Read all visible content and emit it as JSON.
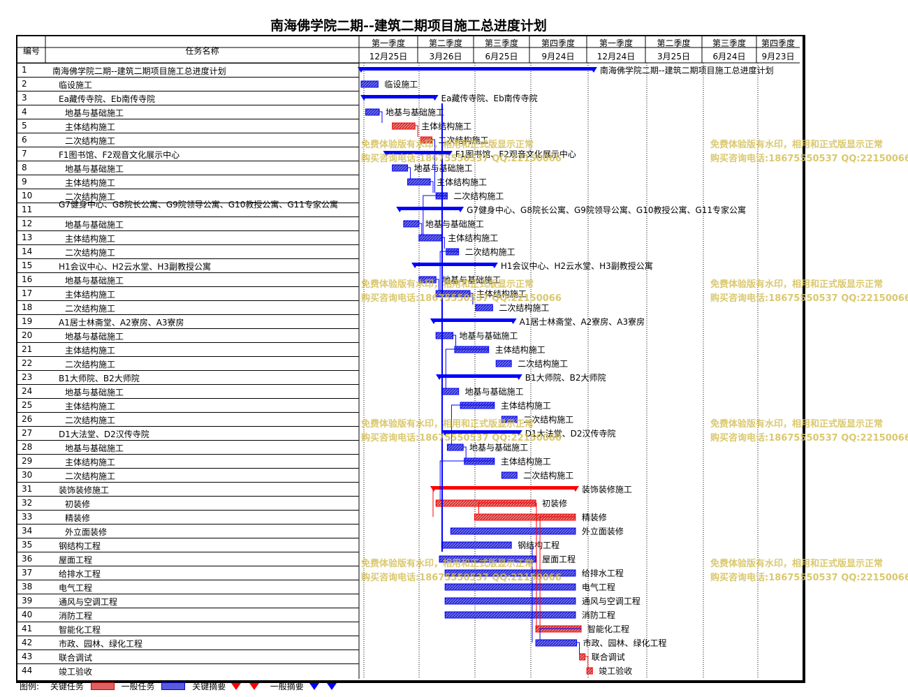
{
  "title": "南海佛学院二期--建筑二期项目施工总进度计划",
  "header": {
    "id_label": "编号",
    "name_label": "任务名称",
    "quarters": [
      "第一季度",
      "第二季度",
      "第三季度",
      "第四季度",
      "第一季度",
      "第二季度",
      "第三季度",
      "第四季度"
    ],
    "dates": [
      "12月25日",
      "3月26日",
      "6月25日",
      "9月24日",
      "12月24日",
      "3月25日",
      "6月24日",
      "9月23日"
    ]
  },
  "rows": [
    {
      "id": "1",
      "name": "南海佛学院二期--建筑二期项目施工总进度计划",
      "indent": 0
    },
    {
      "id": "2",
      "name": "临设施工",
      "indent": 1
    },
    {
      "id": "3",
      "name": "Ea藏传寺院、Eb南传寺院",
      "indent": 1
    },
    {
      "id": "4",
      "name": "地基与基础施工",
      "indent": 2
    },
    {
      "id": "5",
      "name": "主体结构施工",
      "indent": 2
    },
    {
      "id": "6",
      "name": "二次结构施工",
      "indent": 2
    },
    {
      "id": "7",
      "name": "F1图书馆、F2观音文化展示中心",
      "indent": 1
    },
    {
      "id": "8",
      "name": "地基与基础施工",
      "indent": 2
    },
    {
      "id": "9",
      "name": "主体结构施工",
      "indent": 2
    },
    {
      "id": "10",
      "name": "二次结构施工",
      "indent": 2
    },
    {
      "id": "11",
      "name": "G7健身中心、G8院长公寓、G9院领导公寓、G10教授公寓、G11专家公寓",
      "indent": 1
    },
    {
      "id": "12",
      "name": "地基与基础施工",
      "indent": 2
    },
    {
      "id": "13",
      "name": "主体结构施工",
      "indent": 2
    },
    {
      "id": "14",
      "name": "二次结构施工",
      "indent": 2
    },
    {
      "id": "15",
      "name": "H1会议中心、H2云水堂、H3副教授公寓",
      "indent": 1
    },
    {
      "id": "16",
      "name": "地基与基础施工",
      "indent": 2
    },
    {
      "id": "17",
      "name": "主体结构施工",
      "indent": 2
    },
    {
      "id": "18",
      "name": "二次结构施工",
      "indent": 2
    },
    {
      "id": "19",
      "name": "A1居士林斋堂、A2寮房、A3寮房",
      "indent": 1
    },
    {
      "id": "20",
      "name": "地基与基础施工",
      "indent": 2
    },
    {
      "id": "21",
      "name": "主体结构施工",
      "indent": 2
    },
    {
      "id": "22",
      "name": "二次结构施工",
      "indent": 2
    },
    {
      "id": "23",
      "name": "B1大师院、B2大师院",
      "indent": 1
    },
    {
      "id": "24",
      "name": "地基与基础施工",
      "indent": 2
    },
    {
      "id": "25",
      "name": "主体结构施工",
      "indent": 2
    },
    {
      "id": "26",
      "name": "二次结构施工",
      "indent": 2
    },
    {
      "id": "27",
      "name": "D1大法堂、D2汉传寺院",
      "indent": 1
    },
    {
      "id": "28",
      "name": "地基与基础施工",
      "indent": 2
    },
    {
      "id": "29",
      "name": "主体结构施工",
      "indent": 2
    },
    {
      "id": "30",
      "name": "二次结构施工",
      "indent": 2
    },
    {
      "id": "31",
      "name": "装饰装修施工",
      "indent": 1
    },
    {
      "id": "32",
      "name": "初装修",
      "indent": 2
    },
    {
      "id": "33",
      "name": "精装修",
      "indent": 2
    },
    {
      "id": "34",
      "name": "外立面装修",
      "indent": 2
    },
    {
      "id": "35",
      "name": "钢结构工程",
      "indent": 1
    },
    {
      "id": "36",
      "name": "屋面工程",
      "indent": 1
    },
    {
      "id": "37",
      "name": "给排水工程",
      "indent": 1
    },
    {
      "id": "38",
      "name": "电气工程",
      "indent": 1
    },
    {
      "id": "39",
      "name": "通风与空调工程",
      "indent": 1
    },
    {
      "id": "40",
      "name": "消防工程",
      "indent": 1
    },
    {
      "id": "41",
      "name": "智能化工程",
      "indent": 1
    },
    {
      "id": "42",
      "name": "市政、园林、绿化工程",
      "indent": 1
    },
    {
      "id": "43",
      "name": "联合调试",
      "indent": 1
    },
    {
      "id": "44",
      "name": "竣工验收",
      "indent": 1
    }
  ],
  "chart_data": {
    "type": "gantt",
    "title": "南海佛学院二期--建筑二期项目施工总进度计划",
    "time_axis_quarters": [
      "第一季度",
      "第二季度",
      "第三季度",
      "第四季度",
      "第一季度",
      "第二季度",
      "第三季度",
      "第四季度"
    ],
    "time_axis_dates": [
      "12月25日",
      "3月26日",
      "6月25日",
      "9月24日",
      "12月24日",
      "3月25日",
      "6月24日",
      "9月23日"
    ],
    "tasks": [
      {
        "id": 1,
        "type": "summary",
        "critical": false,
        "start": 0.0,
        "end": 4.1,
        "label": "南海佛学院二期--建筑二期项目施工总进度计划"
      },
      {
        "id": 2,
        "type": "task",
        "critical": false,
        "start": 0.0,
        "end": 0.3,
        "label": "临设施工"
      },
      {
        "id": 3,
        "type": "summary",
        "critical": false,
        "start": 0.05,
        "end": 1.3,
        "label": "Ea藏传寺院、Eb南传寺院"
      },
      {
        "id": 4,
        "type": "task",
        "critical": false,
        "start": 0.08,
        "end": 0.32,
        "label": "地基与基础施工"
      },
      {
        "id": 5,
        "type": "task",
        "critical": true,
        "start": 0.55,
        "end": 0.95,
        "label": "主体结构施工"
      },
      {
        "id": 6,
        "type": "task",
        "critical": true,
        "start": 1.05,
        "end": 1.25,
        "label": "二次结构施工"
      },
      {
        "id": 7,
        "type": "summary",
        "critical": false,
        "start": 0.45,
        "end": 1.55,
        "label": "F1图书馆、F2观音文化展示中心"
      },
      {
        "id": 8,
        "type": "task",
        "critical": false,
        "start": 0.55,
        "end": 0.82,
        "label": "地基与基础施工"
      },
      {
        "id": 9,
        "type": "task",
        "critical": false,
        "start": 0.82,
        "end": 1.22,
        "label": "主体结构施工"
      },
      {
        "id": 10,
        "type": "task",
        "critical": false,
        "start": 1.32,
        "end": 1.52,
        "label": "二次结构施工"
      },
      {
        "id": 11,
        "type": "summary",
        "critical": false,
        "start": 0.68,
        "end": 1.75,
        "label": "G7健身中心、G8院长公寓、G9院领导公寓、G10教授公寓、G11专家公寓"
      },
      {
        "id": 12,
        "type": "task",
        "critical": false,
        "start": 0.75,
        "end": 1.02,
        "label": "地基与基础施工"
      },
      {
        "id": 13,
        "type": "task",
        "critical": false,
        "start": 1.02,
        "end": 1.42,
        "label": "主体结构施工"
      },
      {
        "id": 14,
        "type": "task",
        "critical": false,
        "start": 1.5,
        "end": 1.72,
        "label": "二次结构施工"
      },
      {
        "id": 15,
        "type": "summary",
        "critical": false,
        "start": 0.95,
        "end": 2.35,
        "label": "H1会议中心、H2云水堂、H3副教授公寓"
      },
      {
        "id": 16,
        "type": "task",
        "critical": false,
        "start": 1.02,
        "end": 1.32,
        "label": "地基与基础施工"
      },
      {
        "id": 17,
        "type": "task",
        "critical": false,
        "start": 1.32,
        "end": 1.92,
        "label": "主体结构施工"
      },
      {
        "id": 18,
        "type": "task",
        "critical": false,
        "start": 2.02,
        "end": 2.32,
        "label": "二次结构施工"
      },
      {
        "id": 19,
        "type": "summary",
        "critical": false,
        "start": 1.28,
        "end": 2.68,
        "label": "A1居士林斋堂、A2寮房、A3寮房"
      },
      {
        "id": 20,
        "type": "task",
        "critical": false,
        "start": 1.32,
        "end": 1.62,
        "label": "地基与基础施工"
      },
      {
        "id": 21,
        "type": "task",
        "critical": false,
        "start": 1.65,
        "end": 2.25,
        "label": "主体结构施工"
      },
      {
        "id": 22,
        "type": "task",
        "critical": false,
        "start": 2.38,
        "end": 2.65,
        "label": "二次结构施工"
      },
      {
        "id": 23,
        "type": "summary",
        "critical": false,
        "start": 1.38,
        "end": 2.78,
        "label": "B1大师院、B2大师院"
      },
      {
        "id": 24,
        "type": "task",
        "critical": false,
        "start": 1.42,
        "end": 1.72,
        "label": "地基与基础施工"
      },
      {
        "id": 25,
        "type": "task",
        "critical": false,
        "start": 1.75,
        "end": 2.35,
        "label": "主体结构施工"
      },
      {
        "id": 26,
        "type": "task",
        "critical": false,
        "start": 2.48,
        "end": 2.75,
        "label": "二次结构施工"
      },
      {
        "id": 27,
        "type": "summary",
        "critical": false,
        "start": 1.48,
        "end": 2.78,
        "label": "D1大法堂、D2汉传寺院"
      },
      {
        "id": 28,
        "type": "task",
        "critical": false,
        "start": 1.52,
        "end": 1.8,
        "label": "地基与基础施工"
      },
      {
        "id": 29,
        "type": "task",
        "critical": false,
        "start": 1.82,
        "end": 2.35,
        "label": "主体结构施工"
      },
      {
        "id": 30,
        "type": "task",
        "critical": false,
        "start": 2.48,
        "end": 2.75,
        "label": "二次结构施工"
      },
      {
        "id": 31,
        "type": "summary",
        "critical": true,
        "start": 1.28,
        "end": 3.78,
        "label": "装饰装修施工"
      },
      {
        "id": 32,
        "type": "task",
        "critical": true,
        "start": 1.32,
        "end": 3.08,
        "label": "初装修"
      },
      {
        "id": 33,
        "type": "task",
        "critical": true,
        "start": 2.0,
        "end": 3.78,
        "label": "精装修"
      },
      {
        "id": 34,
        "type": "task",
        "critical": false,
        "start": 1.58,
        "end": 3.78,
        "label": "外立面装修"
      },
      {
        "id": 35,
        "type": "task",
        "critical": false,
        "start": 1.42,
        "end": 2.65,
        "label": "钢结构工程"
      },
      {
        "id": 36,
        "type": "task",
        "critical": false,
        "start": 1.38,
        "end": 3.08,
        "label": "屋面工程"
      },
      {
        "id": 37,
        "type": "task",
        "critical": false,
        "start": 1.48,
        "end": 3.78,
        "label": "给排水工程"
      },
      {
        "id": 38,
        "type": "task",
        "critical": false,
        "start": 1.48,
        "end": 3.78,
        "label": "电气工程"
      },
      {
        "id": 39,
        "type": "task",
        "critical": false,
        "start": 1.48,
        "end": 3.78,
        "label": "通风与空调工程"
      },
      {
        "id": 40,
        "type": "task",
        "critical": false,
        "start": 1.48,
        "end": 3.78,
        "label": "消防工程"
      },
      {
        "id": 41,
        "type": "task",
        "critical": true,
        "start": 3.08,
        "end": 3.88,
        "label": "智能化工程"
      },
      {
        "id": 42,
        "type": "task",
        "critical": false,
        "start": 3.08,
        "end": 3.8,
        "label": "市政、园林、绿化工程"
      },
      {
        "id": 43,
        "type": "task",
        "critical": true,
        "start": 3.85,
        "end": 3.95,
        "label": "联合调试"
      },
      {
        "id": 44,
        "type": "task",
        "critical": true,
        "start": 3.98,
        "end": 4.08,
        "label": "竣工验收"
      }
    ]
  },
  "watermarks": [
    {
      "line1": "免费体验版有水印，相用和正式版显示正常",
      "line2": "购买咨询电话:18675550537 QQ:22150066"
    }
  ],
  "legend": {
    "label": "图例:",
    "critical_task": "关键任务",
    "normal_task": "一般任务",
    "critical_summary": "关键摘要",
    "normal_summary": "一般摘要"
  },
  "colors": {
    "critical": "#ff0000",
    "normal": "#0000ff",
    "critical_fill": "#e06060",
    "normal_fill": "#5a5ae0"
  }
}
